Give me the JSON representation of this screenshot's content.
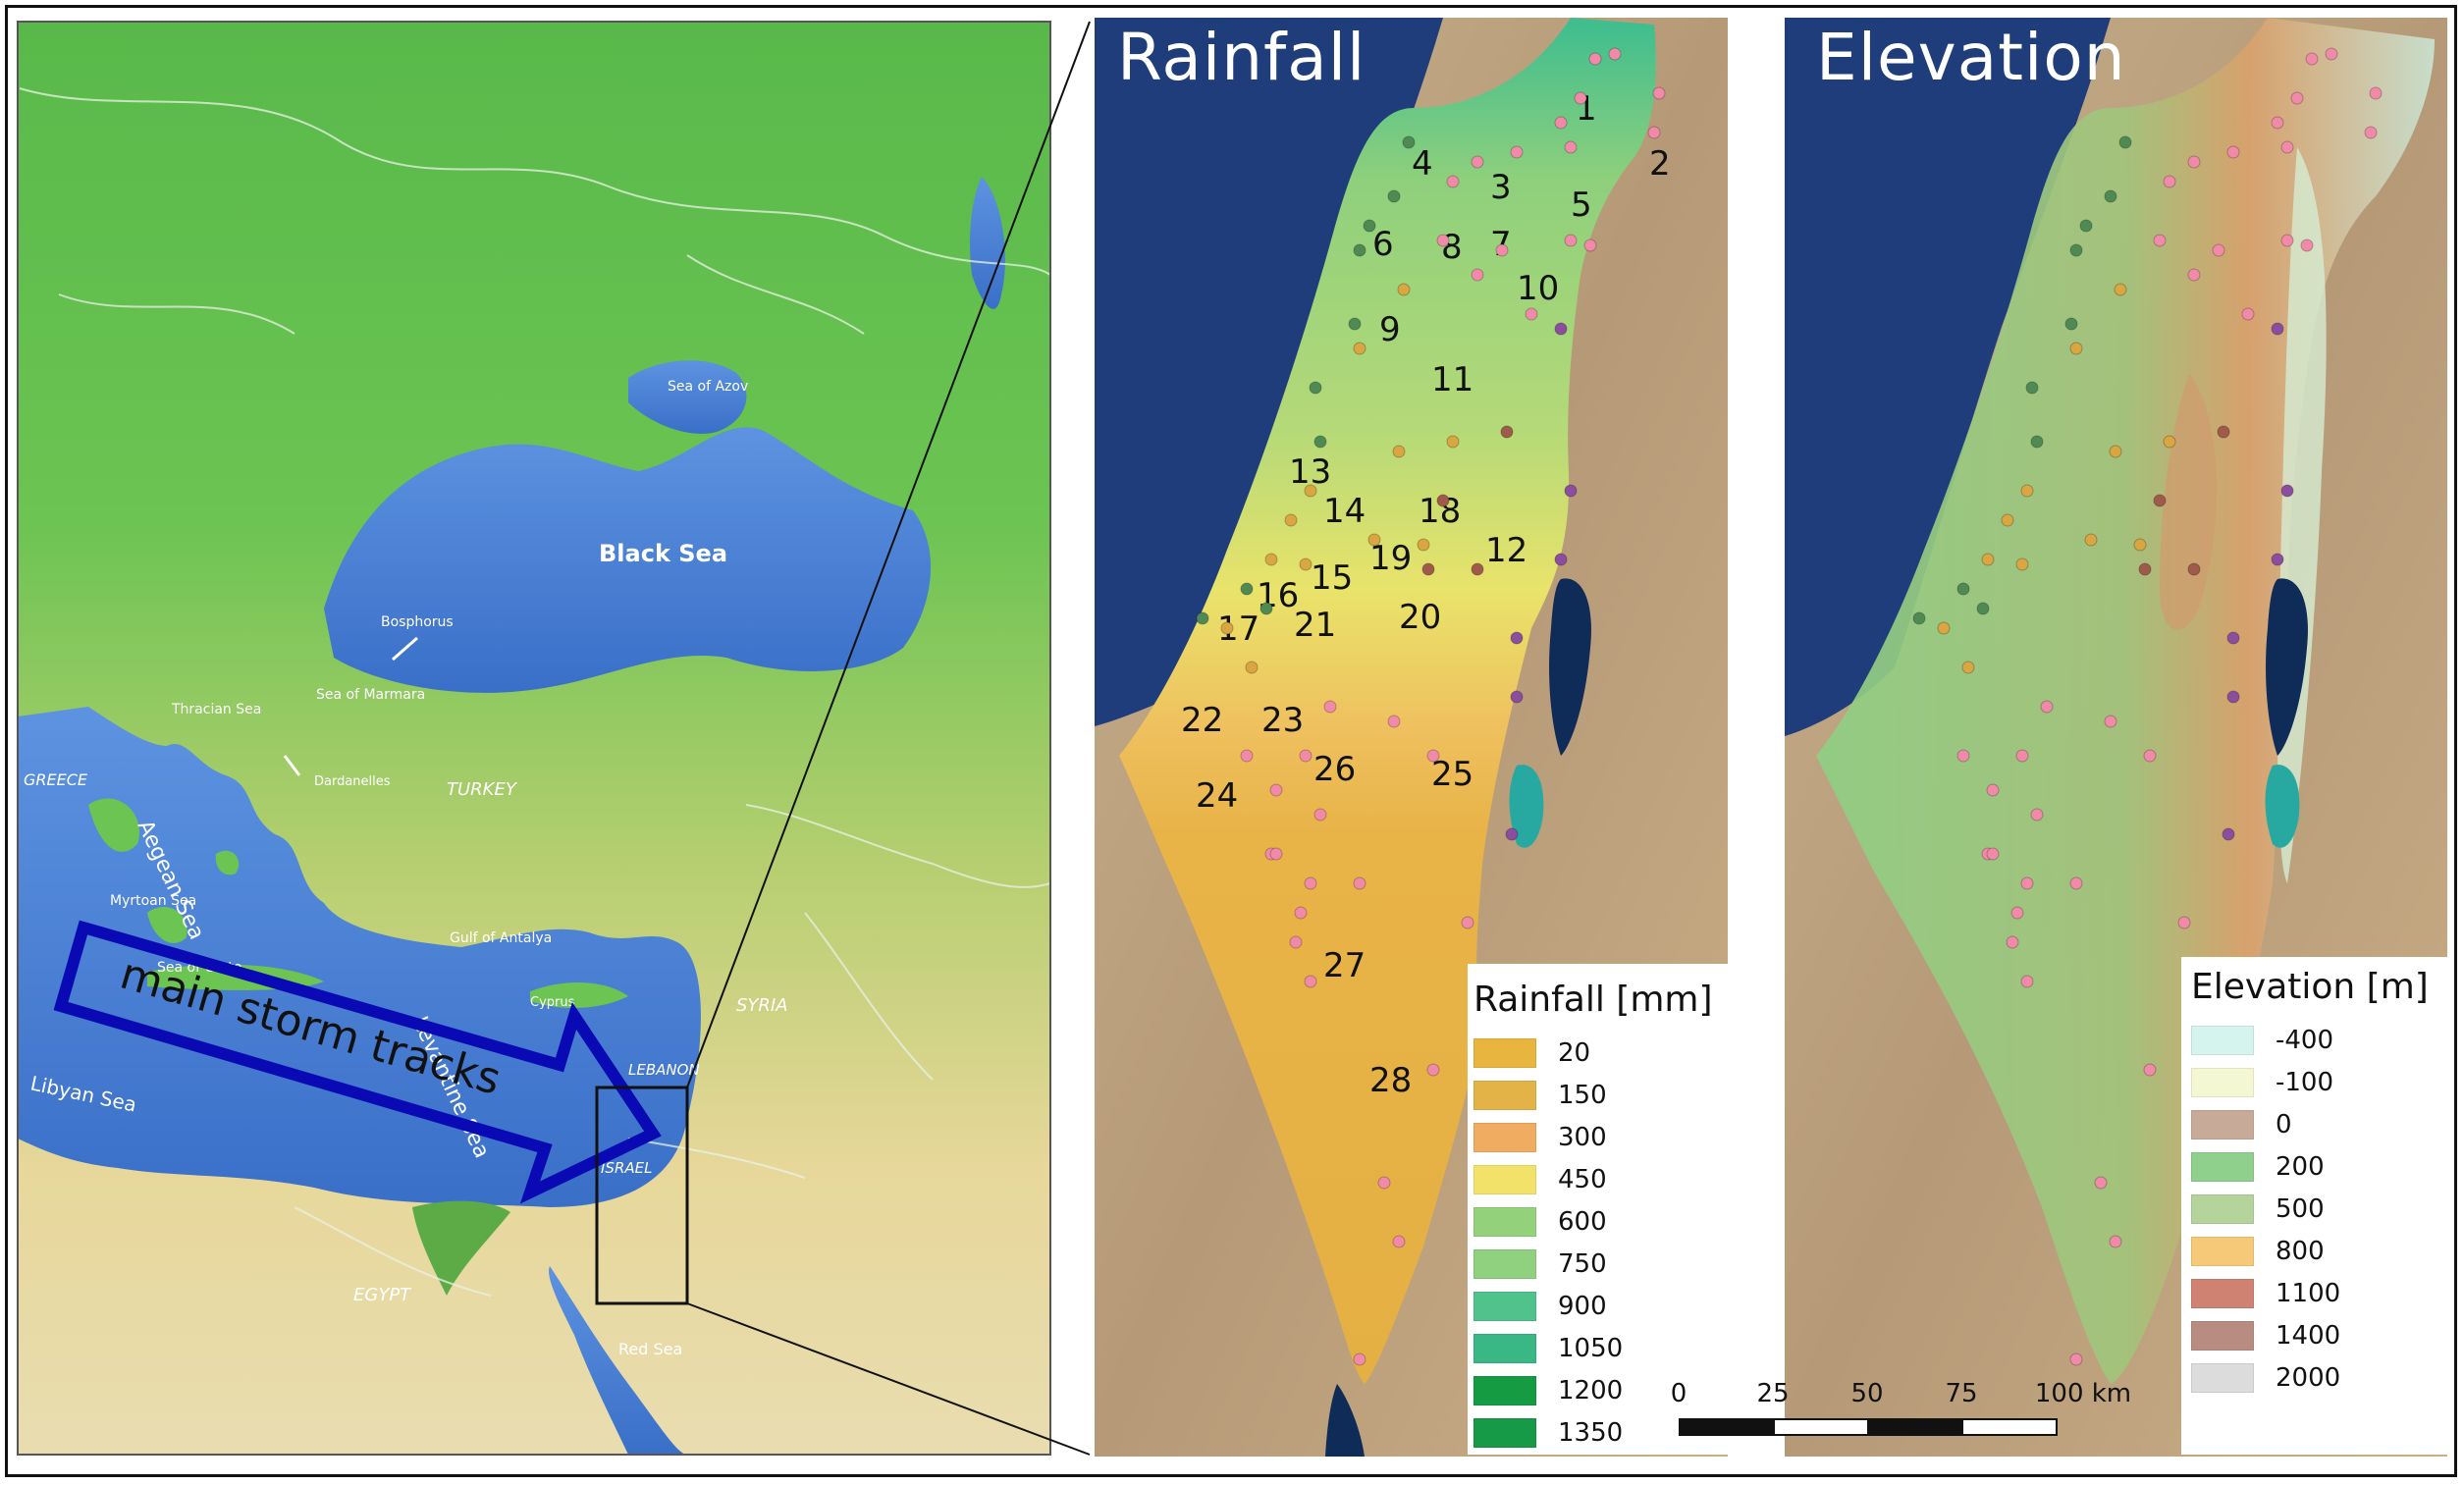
{
  "overview": {
    "sea_labels": [
      "Black Sea",
      "Sea of Azov",
      "Sea of Marmara",
      "Thracian Sea",
      "Aegean Sea",
      "Myrtoan Sea",
      "Sea of Crete",
      "Libyan Sea",
      "Levantine Sea",
      "Gulf of Antalya",
      "Red Sea"
    ],
    "country_labels": [
      "GREECE",
      "TURKEY",
      "SYRIA",
      "LEBANON",
      "ISRAEL",
      "EGYPT",
      "Cyprus"
    ],
    "feature_labels": [
      "Bosphorus",
      "Dardanelles"
    ],
    "storm_label": "main storm tracks"
  },
  "rainfall": {
    "title": "Rainfall",
    "station_numbers": [
      "1",
      "2",
      "3",
      "4",
      "5",
      "6",
      "7",
      "8",
      "9",
      "10",
      "11",
      "12",
      "13",
      "14",
      "15",
      "16",
      "17",
      "18",
      "19",
      "20",
      "21",
      "22",
      "23",
      "24",
      "25",
      "26",
      "27",
      "28"
    ],
    "legend_title": "Rainfall [mm]",
    "legend": [
      {
        "label": "20",
        "color": "#e8b53e"
      },
      {
        "label": "150",
        "color": "#e3b347"
      },
      {
        "label": "300",
        "color": "#f0ac60"
      },
      {
        "label": "450",
        "color": "#f2e26a"
      },
      {
        "label": "600",
        "color": "#93d27a"
      },
      {
        "label": "750",
        "color": "#8fd17e"
      },
      {
        "label": "900",
        "color": "#4fc38b"
      },
      {
        "label": "1050",
        "color": "#39b784"
      },
      {
        "label": "1200",
        "color": "#159c43"
      },
      {
        "label": "1350",
        "color": "#179a48"
      }
    ]
  },
  "elevation": {
    "title": "Elevation",
    "legend_title": "Elevation [m]",
    "legend": [
      {
        "label": "-400",
        "color": "#d6f4ee"
      },
      {
        "label": "-100",
        "color": "#f3f8d3"
      },
      {
        "label": "0",
        "color": "#c8aa98"
      },
      {
        "label": "200",
        "color": "#8fd18c"
      },
      {
        "label": "500",
        "color": "#b5d49c"
      },
      {
        "label": "800",
        "color": "#f5c978"
      },
      {
        "label": "1100",
        "color": "#cf8272"
      },
      {
        "label": "1400",
        "color": "#b88c80"
      },
      {
        "label": "2000",
        "color": "#dcdcdc"
      }
    ]
  },
  "scale": {
    "ticks": [
      "0",
      "25",
      "50",
      "75",
      "100 km"
    ]
  },
  "colors": {
    "sea": "#4a82d6",
    "land_north": "#5fbf4b",
    "land_south": "#e6d6a0",
    "arrow": "#0a0ab4",
    "station_pink": "#f08aa8",
    "station_dark": "#4f8a55"
  }
}
